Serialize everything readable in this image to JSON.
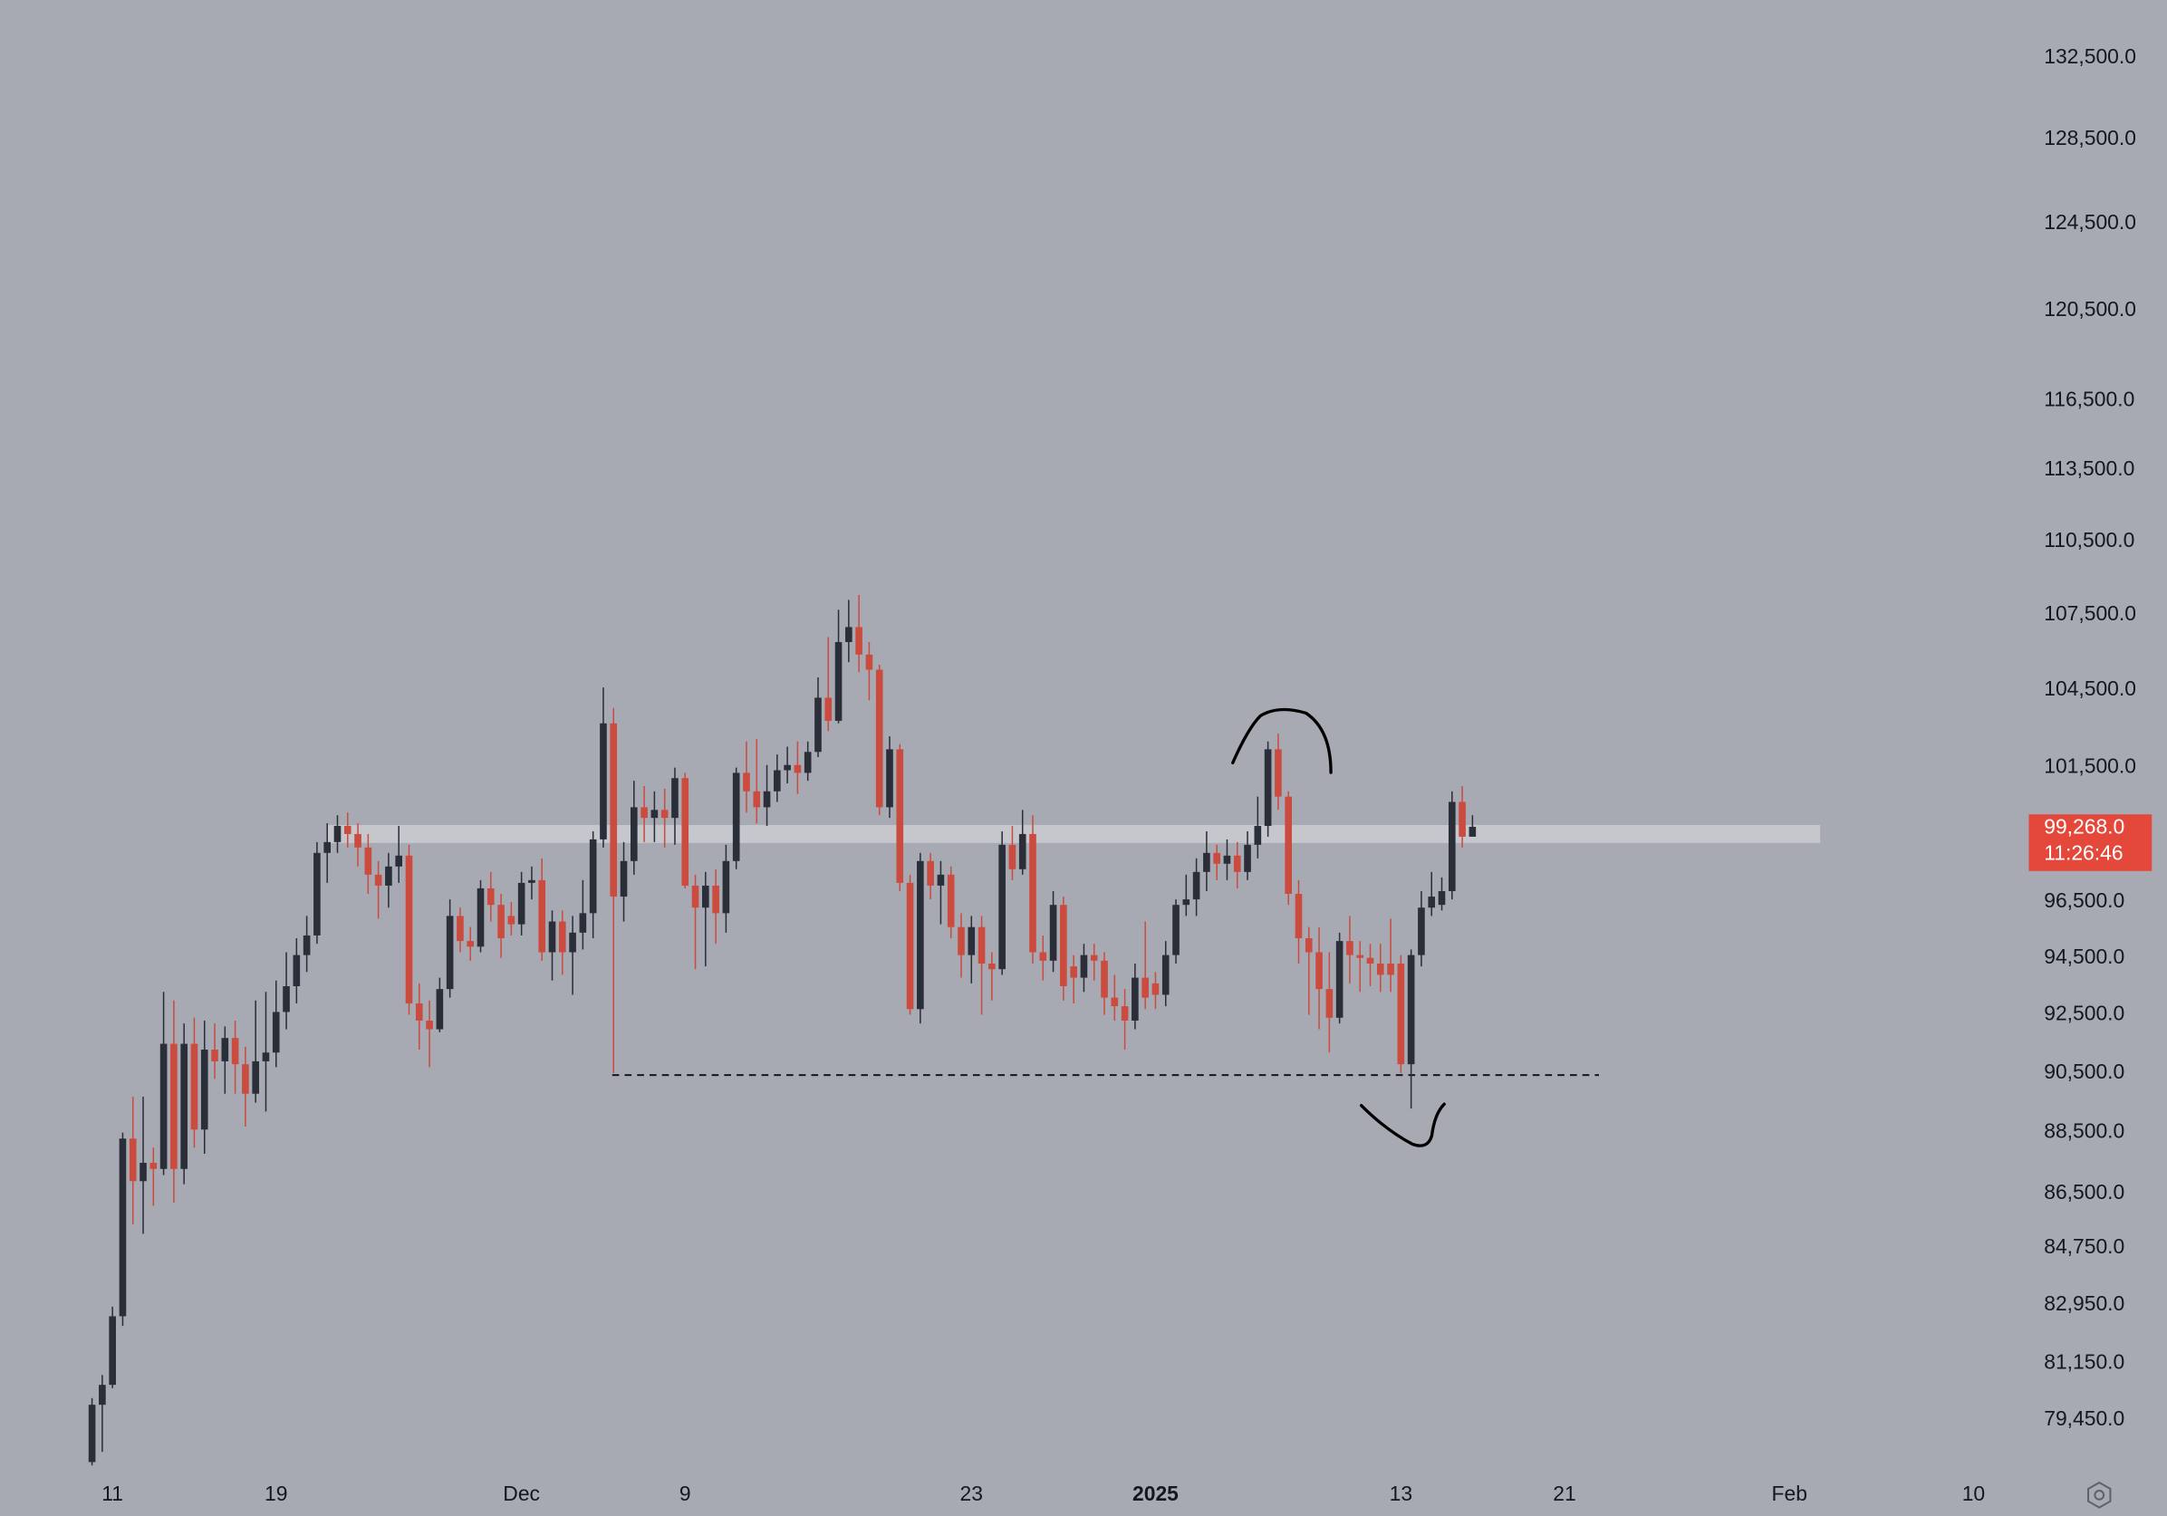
{
  "chart_data": {
    "type": "candlestick",
    "log_scale": true,
    "up_color": "#2a2e39",
    "down_color": "#cc4b3f",
    "xlim": [
      -9,
      189
    ],
    "xticks": [
      {
        "value": 2,
        "label": "11"
      },
      {
        "value": 18,
        "label": "19"
      },
      {
        "value": 42,
        "label": "Dec"
      },
      {
        "value": 58,
        "label": "9"
      },
      {
        "value": 86,
        "label": "23"
      },
      {
        "value": 104,
        "label": "2025"
      },
      {
        "value": 128,
        "label": "13"
      },
      {
        "value": 144,
        "label": "21"
      },
      {
        "value": 166,
        "label": "Feb"
      },
      {
        "value": 184,
        "label": "10"
      }
    ],
    "ylim": [
      77800,
      135400
    ],
    "yticks": [
      {
        "value": 132500,
        "label": "132,500.0"
      },
      {
        "value": 128500,
        "label": "128,500.0"
      },
      {
        "value": 124500,
        "label": "124,500.0"
      },
      {
        "value": 120500,
        "label": "120,500.0"
      },
      {
        "value": 116500,
        "label": "116,500.0"
      },
      {
        "value": 113500,
        "label": "113,500.0"
      },
      {
        "value": 110500,
        "label": "110,500.0"
      },
      {
        "value": 107500,
        "label": "107,500.0"
      },
      {
        "value": 104500,
        "label": "104,500.0"
      },
      {
        "value": 101500,
        "label": "101,500.0"
      },
      {
        "value": 96500,
        "label": "96,500.0"
      },
      {
        "value": 94500,
        "label": "94,500.0"
      },
      {
        "value": 92500,
        "label": "92,500.0"
      },
      {
        "value": 90500,
        "label": "90,500.0"
      },
      {
        "value": 88500,
        "label": "88,500.0"
      },
      {
        "value": 86500,
        "label": "86,500.0"
      },
      {
        "value": 84750,
        "label": "84,750.0"
      },
      {
        "value": 82950,
        "label": "82,950.0"
      },
      {
        "value": 81150,
        "label": "81,150.0"
      },
      {
        "value": 79450,
        "label": "79,450.0"
      }
    ],
    "last_price": {
      "value": 99268,
      "label": "99,268.0"
    },
    "countdown": "11:26:46",
    "open": [
      78200,
      79900,
      80500,
      82600,
      88300,
      86900,
      87500,
      87300,
      91500,
      87300,
      91500,
      88600,
      91300,
      90900,
      91700,
      90800,
      89800,
      90900,
      91200,
      92600,
      93500,
      94600,
      95300,
      98300,
      98700,
      99300,
      99000,
      98500,
      97500,
      97100,
      97800,
      98200,
      92900,
      92300,
      92000,
      93400,
      96000,
      95100,
      94900,
      97000,
      96400,
      96000,
      95700,
      97200,
      97300,
      94700,
      95800,
      94700,
      95400,
      96100,
      98800,
      103200,
      96700,
      98000,
      100000,
      99600,
      99900,
      99600,
      101100,
      97100,
      96300,
      97100,
      96100,
      98000,
      101300,
      100600,
      100000,
      100600,
      101400,
      101600,
      101300,
      102100,
      104200,
      103300,
      106400,
      107000,
      105900,
      105300,
      100000,
      102200,
      97200,
      92700,
      98000,
      97100,
      97500,
      95600,
      94600,
      95600,
      94300,
      94100,
      98600,
      97700,
      99000,
      94700,
      94400,
      96400,
      94200,
      93800,
      94600,
      94400,
      93100,
      92800,
      92300,
      93800,
      93600,
      93200,
      94600,
      96400,
      96600,
      97600,
      98300,
      97900,
      98200,
      97600,
      98600,
      99300,
      102200,
      100400,
      96800,
      95200,
      94700,
      93400,
      92400,
      95100,
      94600,
      94500,
      94300,
      94300,
      94300,
      90800,
      94600,
      96300,
      96400,
      96900,
      100200,
      98900
    ],
    "high": [
      80100,
      80800,
      82900,
      88500,
      89700,
      89700,
      88000,
      93300,
      93000,
      92200,
      92400,
      92300,
      92200,
      92100,
      92300,
      91400,
      93000,
      93300,
      93700,
      94700,
      95200,
      96000,
      98700,
      99400,
      99700,
      99800,
      99400,
      99000,
      98000,
      98300,
      99300,
      98600,
      93600,
      93000,
      93800,
      96600,
      96300,
      95600,
      97300,
      97600,
      96800,
      96500,
      97600,
      97800,
      98100,
      96200,
      96200,
      96000,
      97300,
      99100,
      104600,
      103800,
      98700,
      101000,
      100800,
      100600,
      100700,
      101500,
      101300,
      97500,
      97600,
      97700,
      98600,
      101500,
      102500,
      102600,
      101600,
      102000,
      102300,
      102500,
      102500,
      105000,
      106600,
      107700,
      108100,
      108300,
      106400,
      105500,
      102700,
      102400,
      97500,
      98300,
      98300,
      98000,
      97800,
      96100,
      96000,
      96000,
      94700,
      99100,
      99300,
      99900,
      99700,
      95300,
      96900,
      96700,
      94600,
      95000,
      95000,
      94700,
      93900,
      93400,
      94300,
      95800,
      94000,
      95100,
      96600,
      97500,
      98100,
      99100,
      98600,
      98800,
      98700,
      99100,
      100400,
      102500,
      102800,
      100600,
      97300,
      95600,
      95600,
      94700,
      95400,
      96000,
      95100,
      95000,
      95000,
      95900,
      94600,
      94800,
      96900,
      97600,
      97400,
      100600,
      100800,
      99700
    ],
    "low": [
      78100,
      78500,
      80400,
      82300,
      85500,
      85200,
      86100,
      87100,
      86200,
      86800,
      88000,
      87800,
      90300,
      89800,
      89800,
      88700,
      89500,
      89200,
      90700,
      92000,
      92900,
      94000,
      95000,
      97200,
      98300,
      98500,
      97800,
      96800,
      95900,
      96300,
      97200,
      92500,
      91300,
      90700,
      91900,
      93100,
      94700,
      94400,
      94700,
      95800,
      94500,
      95300,
      95300,
      96600,
      94400,
      93700,
      93900,
      93200,
      94800,
      95200,
      98500,
      90500,
      95800,
      97500,
      98700,
      98700,
      98500,
      98600,
      97000,
      94100,
      94200,
      95000,
      95400,
      97700,
      99800,
      99400,
      99300,
      100200,
      100900,
      100500,
      101000,
      101900,
      102900,
      103200,
      105600,
      105200,
      104100,
      99700,
      99600,
      96900,
      92500,
      92200,
      96600,
      95700,
      95200,
      93800,
      93600,
      92500,
      93000,
      93900,
      97300,
      97500,
      94300,
      93700,
      94000,
      93000,
      92900,
      93300,
      93700,
      92500,
      92300,
      91300,
      92000,
      92700,
      92700,
      92800,
      94300,
      96000,
      96000,
      96900,
      97300,
      97300,
      97000,
      97300,
      98100,
      98900,
      99900,
      96400,
      94300,
      92500,
      92000,
      91200,
      92200,
      93600,
      93300,
      93500,
      93300,
      93300,
      90500,
      89300,
      94200,
      96000,
      96200,
      96600,
      98500,
      98900
    ],
    "close": [
      79900,
      80500,
      82600,
      88300,
      86900,
      87500,
      87300,
      91500,
      87300,
      91500,
      88600,
      91300,
      90900,
      91700,
      90800,
      89800,
      90900,
      91200,
      92600,
      93500,
      94600,
      95300,
      98300,
      98700,
      99300,
      99000,
      98500,
      97500,
      97100,
      97800,
      98200,
      92900,
      92300,
      92000,
      93400,
      96000,
      95100,
      94900,
      97000,
      96400,
      95200,
      95700,
      97200,
      97300,
      94700,
      95800,
      94700,
      95400,
      96100,
      98800,
      103200,
      96700,
      98000,
      100000,
      99600,
      99900,
      99600,
      101100,
      97100,
      96300,
      97100,
      96100,
      98000,
      101300,
      100600,
      100000,
      100600,
      101400,
      101600,
      101300,
      102100,
      104200,
      103300,
      106400,
      107000,
      105900,
      105300,
      100000,
      102200,
      97200,
      92700,
      98000,
      97100,
      97500,
      95600,
      94600,
      95600,
      94300,
      94100,
      98600,
      97700,
      99000,
      94700,
      94400,
      96400,
      93500,
      93800,
      94600,
      94400,
      93100,
      92800,
      92300,
      93800,
      93100,
      93200,
      94600,
      96400,
      96600,
      97600,
      98300,
      97900,
      98200,
      97600,
      98600,
      99300,
      102200,
      100400,
      96800,
      95200,
      94700,
      93400,
      92400,
      95100,
      94600,
      94500,
      94300,
      93900,
      93900,
      90800,
      94600,
      96300,
      96700,
      96900,
      100200,
      98900,
      99268
    ]
  }
}
